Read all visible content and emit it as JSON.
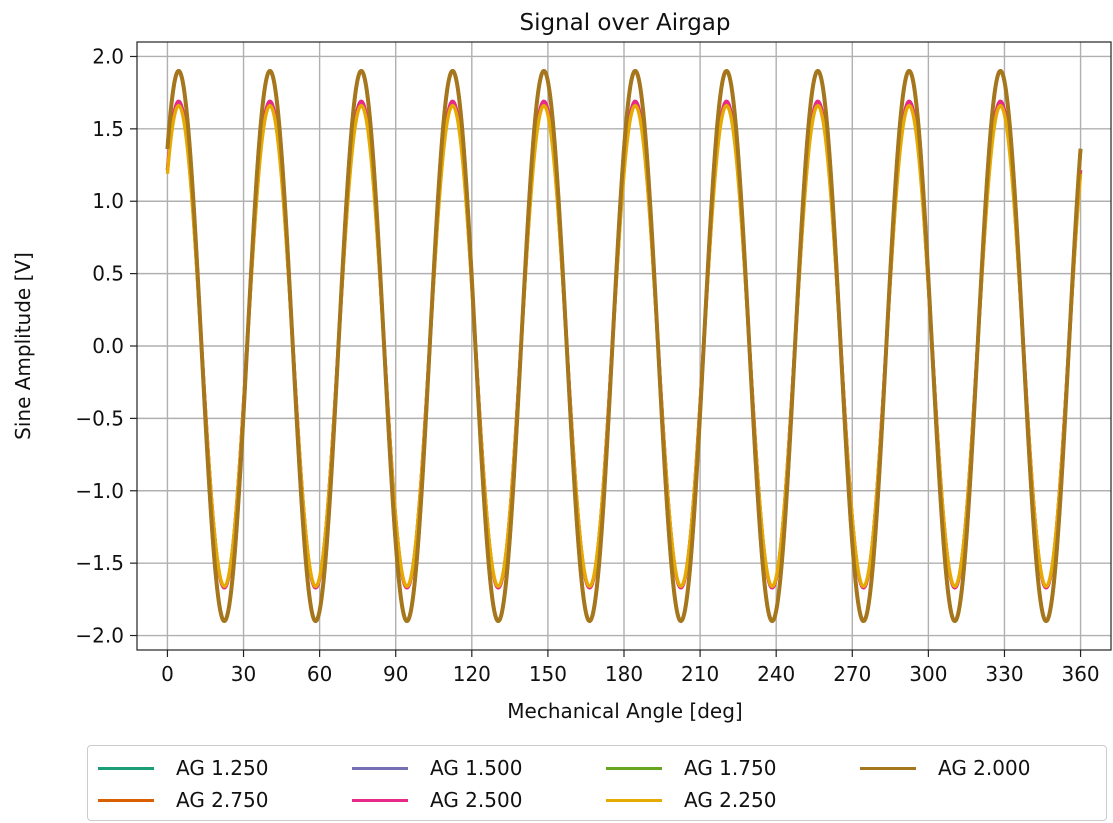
{
  "chart_data": {
    "type": "line",
    "title": "Signal over Airgap",
    "xlabel": "Mechanical Angle [deg]",
    "ylabel": "Sine Amplitude [V]",
    "xlim": [
      -12,
      372
    ],
    "ylim": [
      -2.1,
      2.1
    ],
    "x_ticks": [
      0,
      30,
      60,
      90,
      120,
      150,
      180,
      210,
      240,
      270,
      300,
      330,
      360
    ],
    "x_tick_labels": [
      "0",
      "30",
      "60",
      "90",
      "120",
      "150",
      "180",
      "210",
      "240",
      "270",
      "300",
      "330",
      "360"
    ],
    "y_ticks": [
      2.0,
      1.5,
      1.0,
      0.5,
      0.0,
      -0.5,
      -1.0,
      -1.5,
      -2.0
    ],
    "y_tick_labels": [
      "2.0",
      "1.5",
      "1.0",
      "0.5",
      "0.0",
      "−0.5",
      "−1.0",
      "−1.5",
      "−2.0"
    ],
    "grid": true,
    "legend_position": "below",
    "x_start": 0,
    "x_end": 360,
    "cycles_per_revolution": 10,
    "series": [
      {
        "name": "AG 1.250",
        "color": "#1b9e77",
        "amplitude": 1.9,
        "offset": 0.0,
        "phase_deg": 45.8
      },
      {
        "name": "AG 1.500",
        "color": "#7570b3",
        "amplitude": 1.9,
        "offset": 0.0,
        "phase_deg": 45.8
      },
      {
        "name": "AG 1.750",
        "color": "#66a61e",
        "amplitude": 1.9,
        "offset": 0.0,
        "phase_deg": 45.8
      },
      {
        "name": "AG 2.000",
        "color": "#a6761d",
        "amplitude": 1.9,
        "offset": 0.0,
        "phase_deg": 45.8
      },
      {
        "name": "AG 2.750",
        "color": "#d95f02",
        "amplitude": 1.68,
        "offset": 0.01,
        "phase_deg": 45.8
      },
      {
        "name": "AG 2.500",
        "color": "#e7298a",
        "amplitude": 1.68,
        "offset": 0.01,
        "phase_deg": 45.8
      },
      {
        "name": "AG 2.250",
        "color": "#e6ab02",
        "amplitude": 1.66,
        "offset": 0.0,
        "phase_deg": 45.8
      }
    ]
  }
}
